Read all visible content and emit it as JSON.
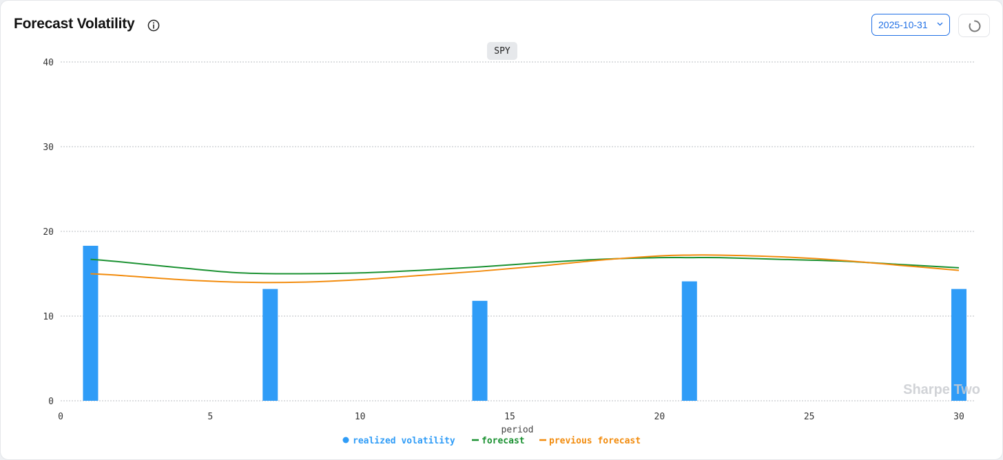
{
  "header": {
    "title": "Forecast Volatility",
    "date_value": "2025-10-31"
  },
  "icons": {
    "info": "info-icon",
    "chevron": "chevron-down-icon",
    "refresh": "loading-spinner-icon"
  },
  "watermark": "Sharpe Two",
  "chart_data": {
    "type": "bar",
    "title": "SPY",
    "xlabel": "period",
    "ylabel": "",
    "xlim": [
      0,
      30
    ],
    "ylim": [
      0,
      40
    ],
    "x_ticks": [
      0,
      5,
      10,
      15,
      20,
      25,
      30
    ],
    "y_ticks": [
      0,
      10,
      20,
      30,
      40
    ],
    "grid": true,
    "legend_position": "bottom-center",
    "series": [
      {
        "name": "realized volatility",
        "type": "bar",
        "color": "#2f9cf7",
        "x": [
          1,
          7,
          14,
          21,
          30
        ],
        "values": [
          18.3,
          13.2,
          11.8,
          14.1,
          13.2
        ]
      },
      {
        "name": "forecast",
        "type": "line",
        "color": "#1a9131",
        "x": [
          1,
          2,
          4,
          6,
          8,
          10,
          12,
          14,
          16,
          18,
          20,
          21,
          22,
          24,
          26,
          28,
          30
        ],
        "values": [
          16.7,
          16.4,
          15.7,
          15.1,
          15.0,
          15.1,
          15.4,
          15.8,
          16.3,
          16.7,
          16.9,
          16.9,
          16.9,
          16.7,
          16.5,
          16.1,
          15.7
        ]
      },
      {
        "name": "previous forecast",
        "type": "line",
        "color": "#f28b0c",
        "x": [
          1,
          2,
          4,
          6,
          8,
          10,
          12,
          14,
          16,
          18,
          20,
          21,
          22,
          24,
          26,
          28,
          30
        ],
        "values": [
          15.0,
          14.8,
          14.3,
          14.0,
          14.0,
          14.3,
          14.8,
          15.3,
          15.9,
          16.6,
          17.1,
          17.2,
          17.2,
          17.0,
          16.6,
          16.0,
          15.4
        ]
      }
    ]
  }
}
